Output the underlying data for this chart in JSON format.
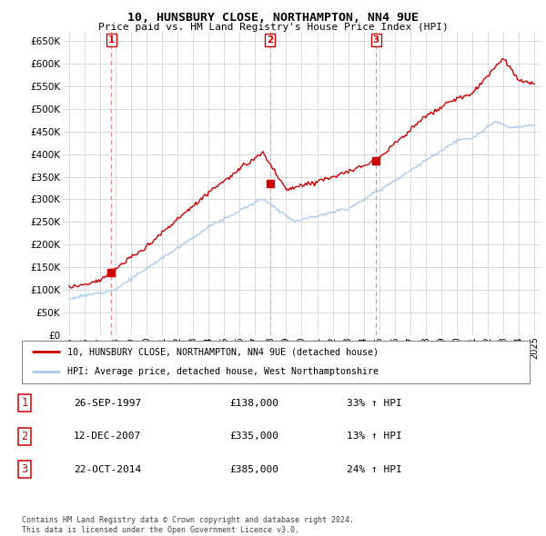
{
  "title": "10, HUNSBURY CLOSE, NORTHAMPTON, NN4 9UE",
  "subtitle": "Price paid vs. HM Land Registry's House Price Index (HPI)",
  "legend_line1": "10, HUNSBURY CLOSE, NORTHAMPTON, NN4 9UE (detached house)",
  "legend_line2": "HPI: Average price, detached house, West Northamptonshire",
  "footer1": "Contains HM Land Registry data © Crown copyright and database right 2024.",
  "footer2": "This data is licensed under the Open Government Licence v3.0.",
  "sales": [
    {
      "num": 1,
      "date": "26-SEP-1997",
      "price": 138000,
      "pct": "33%",
      "dir": "↑",
      "x_year": 1997.73
    },
    {
      "num": 2,
      "date": "12-DEC-2007",
      "price": 335000,
      "pct": "13%",
      "dir": "↑",
      "x_year": 2007.95
    },
    {
      "num": 3,
      "date": "22-OCT-2014",
      "price": 385000,
      "pct": "24%",
      "dir": "↑",
      "x_year": 2014.8
    }
  ],
  "hpi_color": "#aaccee",
  "price_color": "#cc0000",
  "vline_color": "#ee8888",
  "dot_color": "#cc0000",
  "background_color": "#ffffff",
  "grid_color": "#cccccc",
  "ylim": [
    0,
    670000
  ],
  "xlim": [
    1994.6,
    2025.4
  ],
  "yticks": [
    0,
    50000,
    100000,
    150000,
    200000,
    250000,
    300000,
    350000,
    400000,
    450000,
    500000,
    550000,
    600000,
    650000
  ],
  "xtick_years": [
    1995,
    1996,
    1997,
    1998,
    1999,
    2000,
    2001,
    2002,
    2003,
    2004,
    2005,
    2006,
    2007,
    2008,
    2009,
    2010,
    2011,
    2012,
    2013,
    2014,
    2015,
    2016,
    2017,
    2018,
    2019,
    2020,
    2021,
    2022,
    2023,
    2024,
    2025
  ]
}
